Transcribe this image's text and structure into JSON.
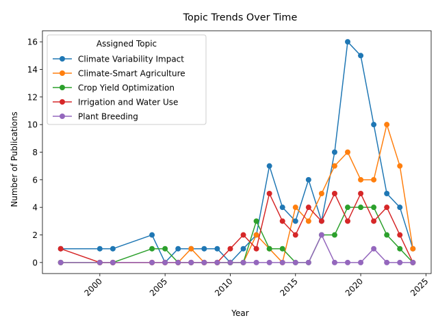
{
  "chart_data": {
    "type": "line",
    "title": "Topic Trends Over Time",
    "xlabel": "Year",
    "ylabel": "Number of Publications",
    "xlim": [
      1995.6,
      2025.4
    ],
    "ylim": [
      -0.8,
      16.8
    ],
    "x_ticks": [
      2000,
      2005,
      2010,
      2015,
      2020,
      2025
    ],
    "y_ticks": [
      0,
      2,
      4,
      6,
      8,
      10,
      12,
      14,
      16
    ],
    "x_tick_rotation": 45,
    "grid": false,
    "legend_title": "Assigned Topic",
    "legend_position": "top-left",
    "series": [
      {
        "name": "Climate Variability Impact",
        "color": "#1f77b4",
        "points": [
          [
            1997,
            1
          ],
          [
            2000,
            1
          ],
          [
            2001,
            1
          ],
          [
            2004,
            2
          ],
          [
            2005,
            0
          ],
          [
            2006,
            1
          ],
          [
            2007,
            1
          ],
          [
            2008,
            1
          ],
          [
            2009,
            1
          ],
          [
            2010,
            0
          ],
          [
            2011,
            1
          ],
          [
            2012,
            2
          ],
          [
            2013,
            7
          ],
          [
            2014,
            4
          ],
          [
            2015,
            3
          ],
          [
            2016,
            6
          ],
          [
            2017,
            3
          ],
          [
            2018,
            8
          ],
          [
            2019,
            16
          ],
          [
            2020,
            15
          ],
          [
            2021,
            10
          ],
          [
            2022,
            5
          ],
          [
            2023,
            4
          ],
          [
            2024,
            1
          ]
        ]
      },
      {
        "name": "Climate-Smart Agriculture",
        "color": "#ff7f0e",
        "points": [
          [
            1997,
            0
          ],
          [
            2000,
            0
          ],
          [
            2001,
            0
          ],
          [
            2004,
            0
          ],
          [
            2005,
            0
          ],
          [
            2006,
            0
          ],
          [
            2007,
            1
          ],
          [
            2008,
            0
          ],
          [
            2009,
            0
          ],
          [
            2010,
            0
          ],
          [
            2011,
            0
          ],
          [
            2012,
            2
          ],
          [
            2013,
            1
          ],
          [
            2014,
            0
          ],
          [
            2015,
            4
          ],
          [
            2016,
            3
          ],
          [
            2017,
            5
          ],
          [
            2018,
            7
          ],
          [
            2019,
            8
          ],
          [
            2020,
            6
          ],
          [
            2021,
            6
          ],
          [
            2022,
            10
          ],
          [
            2023,
            7
          ],
          [
            2024,
            1
          ]
        ]
      },
      {
        "name": "Crop Yield Optimization",
        "color": "#2ca02c",
        "points": [
          [
            1997,
            0
          ],
          [
            2000,
            0
          ],
          [
            2001,
            0
          ],
          [
            2004,
            1
          ],
          [
            2005,
            1
          ],
          [
            2006,
            0
          ],
          [
            2007,
            0
          ],
          [
            2008,
            0
          ],
          [
            2009,
            0
          ],
          [
            2010,
            0
          ],
          [
            2011,
            0
          ],
          [
            2012,
            3
          ],
          [
            2013,
            1
          ],
          [
            2014,
            1
          ],
          [
            2015,
            0
          ],
          [
            2016,
            0
          ],
          [
            2017,
            2
          ],
          [
            2018,
            2
          ],
          [
            2019,
            4
          ],
          [
            2020,
            4
          ],
          [
            2021,
            4
          ],
          [
            2022,
            2
          ],
          [
            2023,
            1
          ],
          [
            2024,
            0
          ]
        ]
      },
      {
        "name": "Irrigation and Water Use",
        "color": "#d62728",
        "points": [
          [
            1997,
            1
          ],
          [
            2000,
            0
          ],
          [
            2001,
            0
          ],
          [
            2004,
            0
          ],
          [
            2005,
            0
          ],
          [
            2006,
            0
          ],
          [
            2007,
            0
          ],
          [
            2008,
            0
          ],
          [
            2009,
            0
          ],
          [
            2010,
            1
          ],
          [
            2011,
            2
          ],
          [
            2012,
            1
          ],
          [
            2013,
            5
          ],
          [
            2014,
            3
          ],
          [
            2015,
            2
          ],
          [
            2016,
            4
          ],
          [
            2017,
            3
          ],
          [
            2018,
            5
          ],
          [
            2019,
            3
          ],
          [
            2020,
            5
          ],
          [
            2021,
            3
          ],
          [
            2022,
            4
          ],
          [
            2023,
            2
          ],
          [
            2024,
            0
          ]
        ]
      },
      {
        "name": "Plant Breeding",
        "color": "#9467bd",
        "points": [
          [
            1997,
            0
          ],
          [
            2000,
            0
          ],
          [
            2001,
            0
          ],
          [
            2004,
            0
          ],
          [
            2005,
            0
          ],
          [
            2006,
            0
          ],
          [
            2007,
            0
          ],
          [
            2008,
            0
          ],
          [
            2009,
            0
          ],
          [
            2010,
            0
          ],
          [
            2011,
            0
          ],
          [
            2012,
            0
          ],
          [
            2013,
            0
          ],
          [
            2014,
            0
          ],
          [
            2015,
            0
          ],
          [
            2016,
            0
          ],
          [
            2017,
            2
          ],
          [
            2018,
            0
          ],
          [
            2019,
            0
          ],
          [
            2020,
            0
          ],
          [
            2021,
            1
          ],
          [
            2022,
            0
          ],
          [
            2023,
            0
          ],
          [
            2024,
            0
          ]
        ]
      }
    ]
  }
}
